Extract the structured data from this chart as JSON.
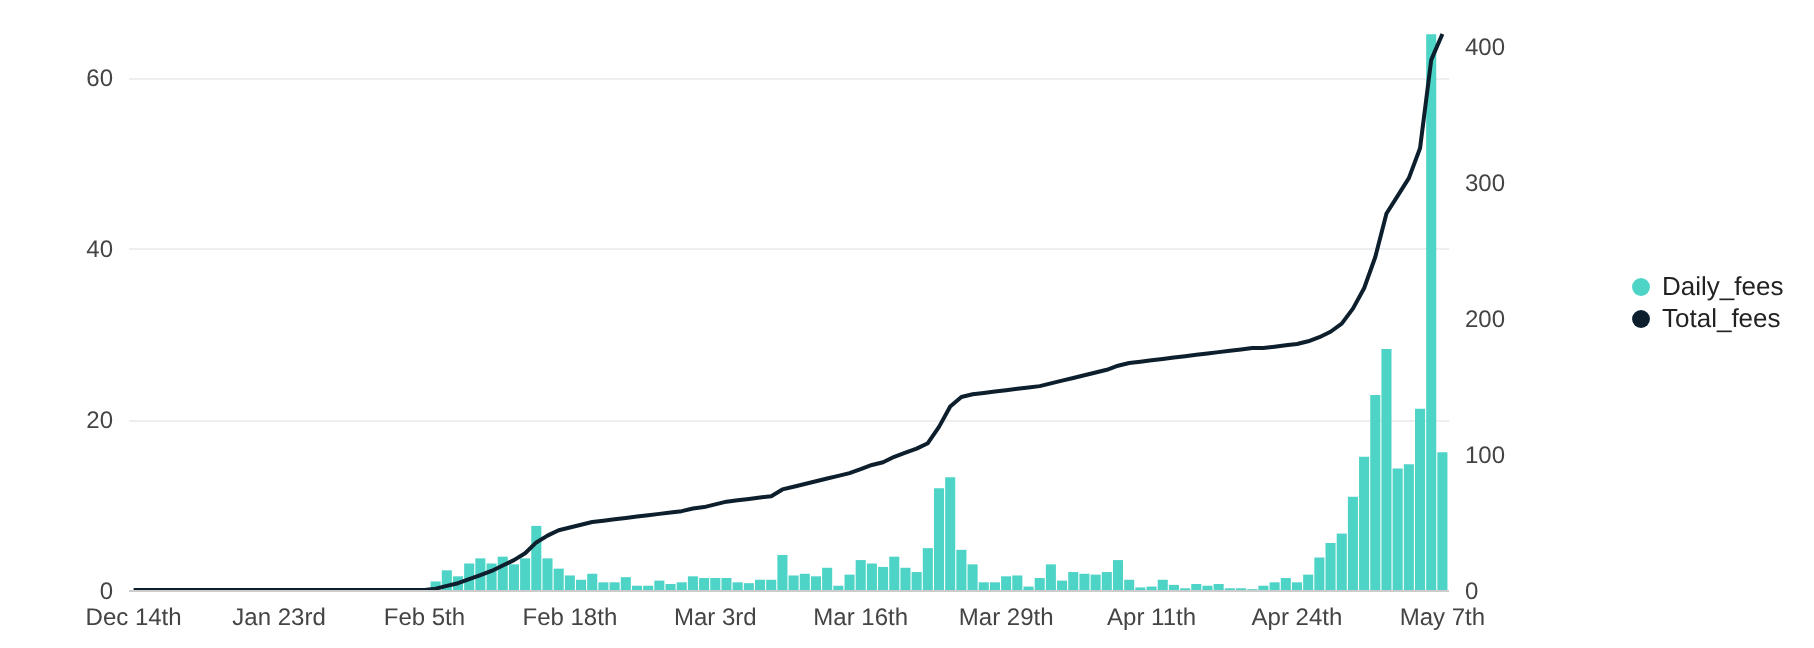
{
  "chart_data": {
    "type": "bar",
    "categories": [
      "Dec 14th",
      null,
      null,
      null,
      null,
      null,
      null,
      null,
      null,
      null,
      null,
      null,
      null,
      "Jan 23rd",
      null,
      null,
      null,
      null,
      null,
      null,
      null,
      null,
      null,
      null,
      null,
      null,
      "Feb 5th",
      null,
      null,
      null,
      null,
      null,
      null,
      null,
      null,
      null,
      null,
      null,
      null,
      "Feb 18th",
      null,
      null,
      null,
      null,
      null,
      null,
      null,
      null,
      null,
      null,
      null,
      null,
      "Mar 3rd",
      null,
      null,
      null,
      null,
      null,
      null,
      null,
      null,
      null,
      null,
      null,
      null,
      "Mar 16th",
      null,
      null,
      null,
      null,
      null,
      null,
      null,
      null,
      null,
      null,
      null,
      null,
      "Mar 29th",
      null,
      null,
      null,
      null,
      null,
      null,
      null,
      null,
      null,
      null,
      null,
      null,
      "Apr 11th",
      null,
      null,
      null,
      null,
      null,
      null,
      null,
      null,
      null,
      null,
      null,
      null,
      "Apr 24th",
      null,
      null,
      null,
      null,
      null,
      null,
      null,
      null,
      null,
      null,
      null,
      null,
      "May 7th"
    ],
    "series": [
      {
        "name": "Daily_fees",
        "color": "#4dd4c6",
        "values": [
          0,
          0,
          0,
          0,
          0,
          0,
          0,
          0,
          0,
          0,
          0,
          0,
          0,
          0,
          0,
          0,
          0,
          0,
          0,
          0,
          0,
          0,
          0,
          0,
          0,
          0,
          0,
          1.0,
          2.3,
          1.6,
          3.1,
          3.7,
          3.1,
          3.9,
          3.0,
          3.7,
          7.5,
          3.7,
          2.5,
          1.7,
          1.2,
          1.9,
          0.9,
          0.9,
          1.5,
          0.5,
          0.5,
          1.1,
          0.7,
          0.9,
          1.6,
          1.4,
          1.4,
          1.4,
          0.9,
          0.8,
          1.2,
          1.2,
          4.1,
          1.7,
          1.9,
          1.6,
          2.6,
          0.5,
          1.8,
          3.5,
          3.1,
          2.7,
          3.9,
          2.6,
          2.1,
          4.9,
          11.9,
          13.2,
          4.7,
          3.0,
          0.9,
          0.9,
          1.6,
          1.7,
          0.4,
          1.4,
          3.0,
          1.1,
          2.1,
          1.9,
          1.8,
          2.1,
          3.5,
          1.2,
          0.3,
          0.4,
          1.2,
          0.6,
          0.2,
          0.7,
          0.5,
          0.7,
          0.2,
          0.2,
          0.1,
          0.5,
          0.9,
          1.4,
          0.9,
          1.8,
          3.8,
          5.5,
          6.6,
          10.9,
          15.6,
          22.8,
          28.2,
          14.2,
          14.7,
          21.2,
          65,
          16.1
        ]
      },
      {
        "name": "Total_fees",
        "type": "line",
        "axis": "y2",
        "color": "#0d1f2d",
        "values": [
          0,
          0,
          0,
          0,
          0,
          0,
          0,
          0,
          0,
          0,
          0,
          0,
          0,
          0,
          0,
          0,
          0,
          0,
          0,
          0,
          0,
          0,
          0,
          0,
          0,
          0,
          0,
          1,
          3,
          5,
          8,
          11,
          14,
          18,
          22,
          27,
          35,
          40,
          44,
          46,
          48,
          50,
          51,
          52,
          53,
          54,
          55,
          56,
          57,
          58,
          60,
          61,
          63,
          65,
          66,
          67,
          68,
          69,
          74,
          76,
          78,
          80,
          82,
          84,
          86,
          89,
          92,
          94,
          98,
          101,
          104,
          108,
          120,
          135,
          142,
          144,
          145,
          146,
          147,
          148,
          149,
          150,
          152,
          154,
          156,
          158,
          160,
          162,
          165,
          167,
          168,
          169,
          170,
          171,
          172,
          173,
          174,
          175,
          176,
          177,
          178,
          178,
          179,
          180,
          181,
          183,
          186,
          190,
          196,
          207,
          222,
          245,
          277,
          290,
          303,
          325,
          390,
          409
        ]
      }
    ],
    "ylim": [
      0,
      65.5
    ],
    "yticks": [
      0,
      20,
      40,
      60
    ],
    "y2lim": [
      0,
      412
    ],
    "y2ticks": [
      0,
      100,
      200,
      300,
      400
    ],
    "grid": "y",
    "legend": "right"
  }
}
